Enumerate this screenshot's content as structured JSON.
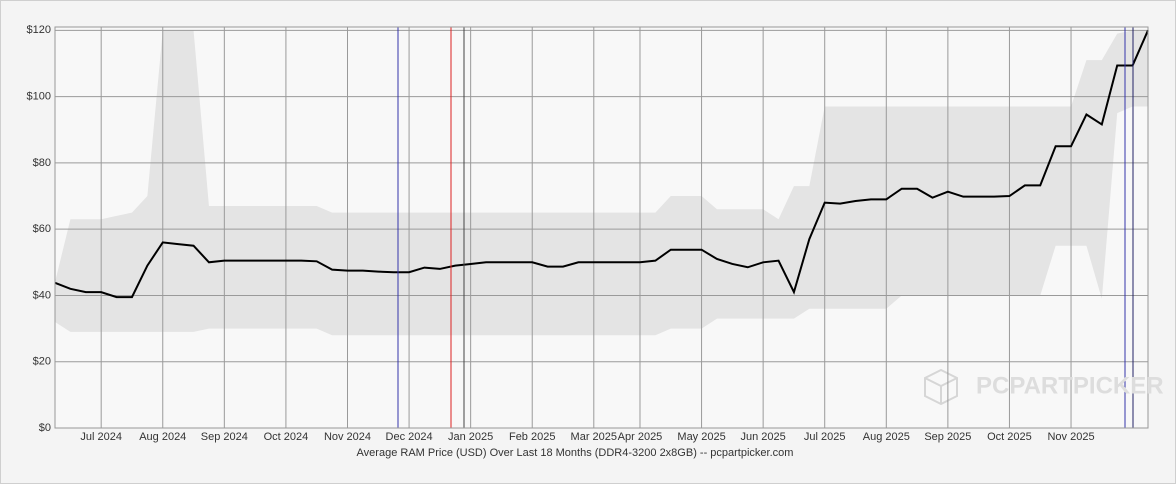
{
  "chart_data": {
    "type": "line",
    "x_label": "Average RAM Price (USD) Over Last 18 Months (DDR4-3200 2x8GB) -- pcpartpicker.com",
    "watermark": "PCPARTPICKER",
    "categories": [
      null,
      null,
      null,
      "Jul 2024",
      null,
      null,
      null,
      "Aug 2024",
      null,
      null,
      null,
      "Sep 2024",
      null,
      null,
      null,
      "Oct 2024",
      null,
      null,
      null,
      "Nov 2024",
      null,
      null,
      null,
      "Dec 2024",
      null,
      null,
      null,
      "Jan 2025",
      null,
      null,
      null,
      "Feb 2025",
      null,
      null,
      null,
      "Mar 2025",
      null,
      null,
      "Apr 2025",
      null,
      null,
      null,
      "May 2025",
      null,
      null,
      null,
      "Jun 2025",
      null,
      null,
      null,
      "Jul 2025",
      null,
      null,
      null,
      "Aug 2025",
      null,
      null,
      null,
      "Sep 2025",
      null,
      null,
      null,
      "Oct 2025",
      null,
      null,
      null,
      "Nov 2025",
      null,
      null,
      null,
      null,
      null
    ],
    "series": [
      {
        "color": "#000000",
        "values": [
          43.8,
          42,
          41,
          41,
          39.5,
          39.5,
          49,
          56,
          55.5,
          55,
          50,
          50.5,
          50.5,
          50.5,
          50.5,
          50.5,
          50.5,
          50.3,
          47.8,
          47.5,
          47.5,
          47.2,
          47,
          47,
          48.4,
          48,
          49,
          49.5,
          50,
          50,
          50,
          50,
          48.7,
          48.7,
          50,
          50,
          50,
          50,
          50,
          50.5,
          53.8,
          53.8,
          53.8,
          51,
          49.5,
          48.5,
          50,
          50.5,
          41,
          57,
          68,
          67.7,
          68.5,
          69,
          69,
          72.2,
          72.2,
          69.5,
          71.3,
          69.8,
          69.8,
          69.8,
          70,
          73.2,
          73.2,
          85,
          85,
          94.6,
          91.6,
          109.4,
          109.4,
          120
        ]
      }
    ],
    "band": {
      "color": "#e4e4e4",
      "low": [
        32,
        29,
        29,
        29,
        29,
        29,
        29,
        29,
        29,
        29,
        30,
        30,
        30,
        30,
        30,
        30,
        30,
        30,
        28,
        28,
        28,
        28,
        28,
        28,
        28,
        28,
        28,
        28,
        28,
        28,
        28,
        28,
        28,
        28,
        28,
        28,
        28,
        28,
        28,
        28,
        30,
        30,
        30,
        33,
        33,
        33,
        33,
        33,
        33,
        36,
        36,
        36,
        36,
        36,
        36,
        40,
        40,
        40,
        40,
        40,
        40,
        40,
        40,
        40,
        40,
        55,
        55,
        55,
        39,
        95,
        97,
        97
      ],
      "high": [
        44,
        63,
        63,
        63,
        64,
        65,
        70,
        120,
        120,
        120,
        67,
        67,
        67,
        67,
        67,
        67,
        67,
        67,
        65,
        65,
        65,
        65,
        65,
        65,
        65,
        65,
        65,
        65,
        65,
        65,
        65,
        65,
        65,
        65,
        65,
        65,
        65,
        65,
        65,
        65,
        70,
        70,
        70,
        66,
        66,
        66,
        66,
        63,
        73,
        73,
        97,
        97,
        97,
        97,
        97,
        97,
        97,
        97,
        97,
        97,
        97,
        97,
        97,
        97,
        97,
        97,
        97,
        111,
        111,
        119,
        120,
        120
      ]
    },
    "ylim": [
      0,
      121
    ],
    "yticks": [
      {
        "value": 0,
        "label": "$0"
      },
      {
        "value": 20,
        "label": "$20"
      },
      {
        "value": 40,
        "label": "$40"
      },
      {
        "value": 60,
        "label": "$60"
      },
      {
        "value": 80,
        "label": "$80"
      },
      {
        "value": 100,
        "label": "$100"
      },
      {
        "value": 120,
        "label": "$120"
      }
    ],
    "grid": true
  }
}
